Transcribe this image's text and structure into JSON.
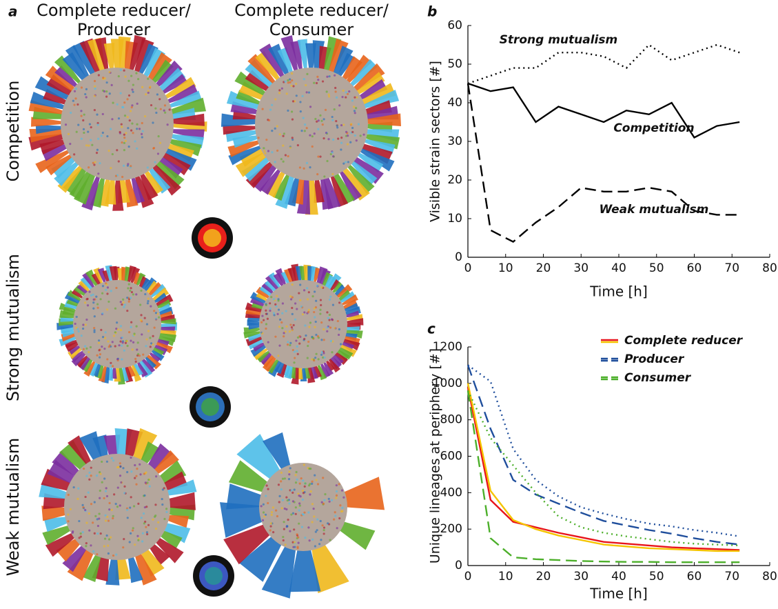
{
  "panel_a": {
    "label": "a",
    "columns": [
      [
        "Complete reducer/",
        "Producer"
      ],
      [
        "Complete reducer/",
        "Consumer"
      ]
    ],
    "rows": [
      "Competition",
      "Strong mutualism",
      "Weak mutualism"
    ]
  },
  "chart_data": [
    {
      "type": "line",
      "label": "b",
      "xlabel": "Time [h]",
      "ylabel": "Visible strain sectors [#]",
      "x": [
        0,
        6,
        12,
        18,
        24,
        30,
        36,
        42,
        48,
        54,
        60,
        66,
        72
      ],
      "xlim": [
        0,
        80
      ],
      "xticks": [
        0,
        10,
        20,
        30,
        40,
        50,
        60,
        70,
        80
      ],
      "ylim": [
        0,
        60
      ],
      "yticks": [
        0,
        10,
        20,
        30,
        40,
        50,
        60
      ],
      "series": [
        {
          "name": "Strong mutualism",
          "color": "#000000",
          "dash": "dotted",
          "values": [
            45,
            47,
            49,
            49,
            53,
            53,
            52,
            49,
            55,
            51,
            53,
            55,
            53
          ]
        },
        {
          "name": "Competition",
          "color": "#000000",
          "dash": "solid",
          "values": [
            45,
            43,
            44,
            35,
            39,
            37,
            35,
            38,
            37,
            40,
            31,
            34,
            35
          ]
        },
        {
          "name": "Weak mutualism",
          "color": "#000000",
          "dash": "dashed",
          "values": [
            45,
            7,
            4,
            9,
            13,
            18,
            17,
            17,
            18,
            17,
            12,
            11,
            11
          ]
        }
      ]
    },
    {
      "type": "multiline",
      "label": "c",
      "xlabel": "Time [h]",
      "ylabel": "Unique lineages at periphery [#]",
      "x": [
        0,
        6,
        12,
        18,
        24,
        30,
        36,
        42,
        48,
        54,
        60,
        66,
        72
      ],
      "xlim": [
        0,
        80
      ],
      "xticks": [
        0,
        10,
        20,
        30,
        40,
        50,
        60,
        70,
        80
      ],
      "ylim": [
        0,
        1200
      ],
      "yticks": [
        0,
        200,
        400,
        600,
        800,
        1000,
        1200
      ],
      "series": [
        {
          "name": "Complete reducer",
          "lines": [
            {
              "color": "#e8141b",
              "dash": "solid",
              "values": [
                980,
                360,
                240,
                210,
                180,
                155,
                130,
                120,
                110,
                100,
                95,
                90,
                85
              ]
            },
            {
              "color": "#f5c400",
              "dash": "solid",
              "values": [
                1000,
                410,
                250,
                200,
                165,
                140,
                115,
                105,
                95,
                90,
                85,
                80,
                80
              ]
            }
          ]
        },
        {
          "name": "Producer",
          "lines": [
            {
              "color": "#1f4e9c",
              "dash": "dashed",
              "values": [
                1100,
                750,
                470,
                390,
                340,
                290,
                245,
                220,
                195,
                175,
                150,
                130,
                115
              ]
            },
            {
              "color": "#1f4e9c",
              "dash": "dotted",
              "values": [
                1100,
                1010,
                640,
                470,
                380,
                320,
                285,
                255,
                230,
                215,
                195,
                180,
                160
              ]
            }
          ]
        },
        {
          "name": "Consumer",
          "lines": [
            {
              "color": "#4caf2a",
              "dash": "dashed",
              "values": [
                960,
                150,
                45,
                35,
                30,
                25,
                22,
                20,
                20,
                18,
                18,
                18,
                18
              ]
            },
            {
              "color": "#4caf2a",
              "dash": "dotted",
              "values": [
                960,
                700,
                550,
                400,
                270,
                210,
                180,
                160,
                145,
                130,
                120,
                115,
                110
              ]
            }
          ]
        }
      ]
    }
  ]
}
